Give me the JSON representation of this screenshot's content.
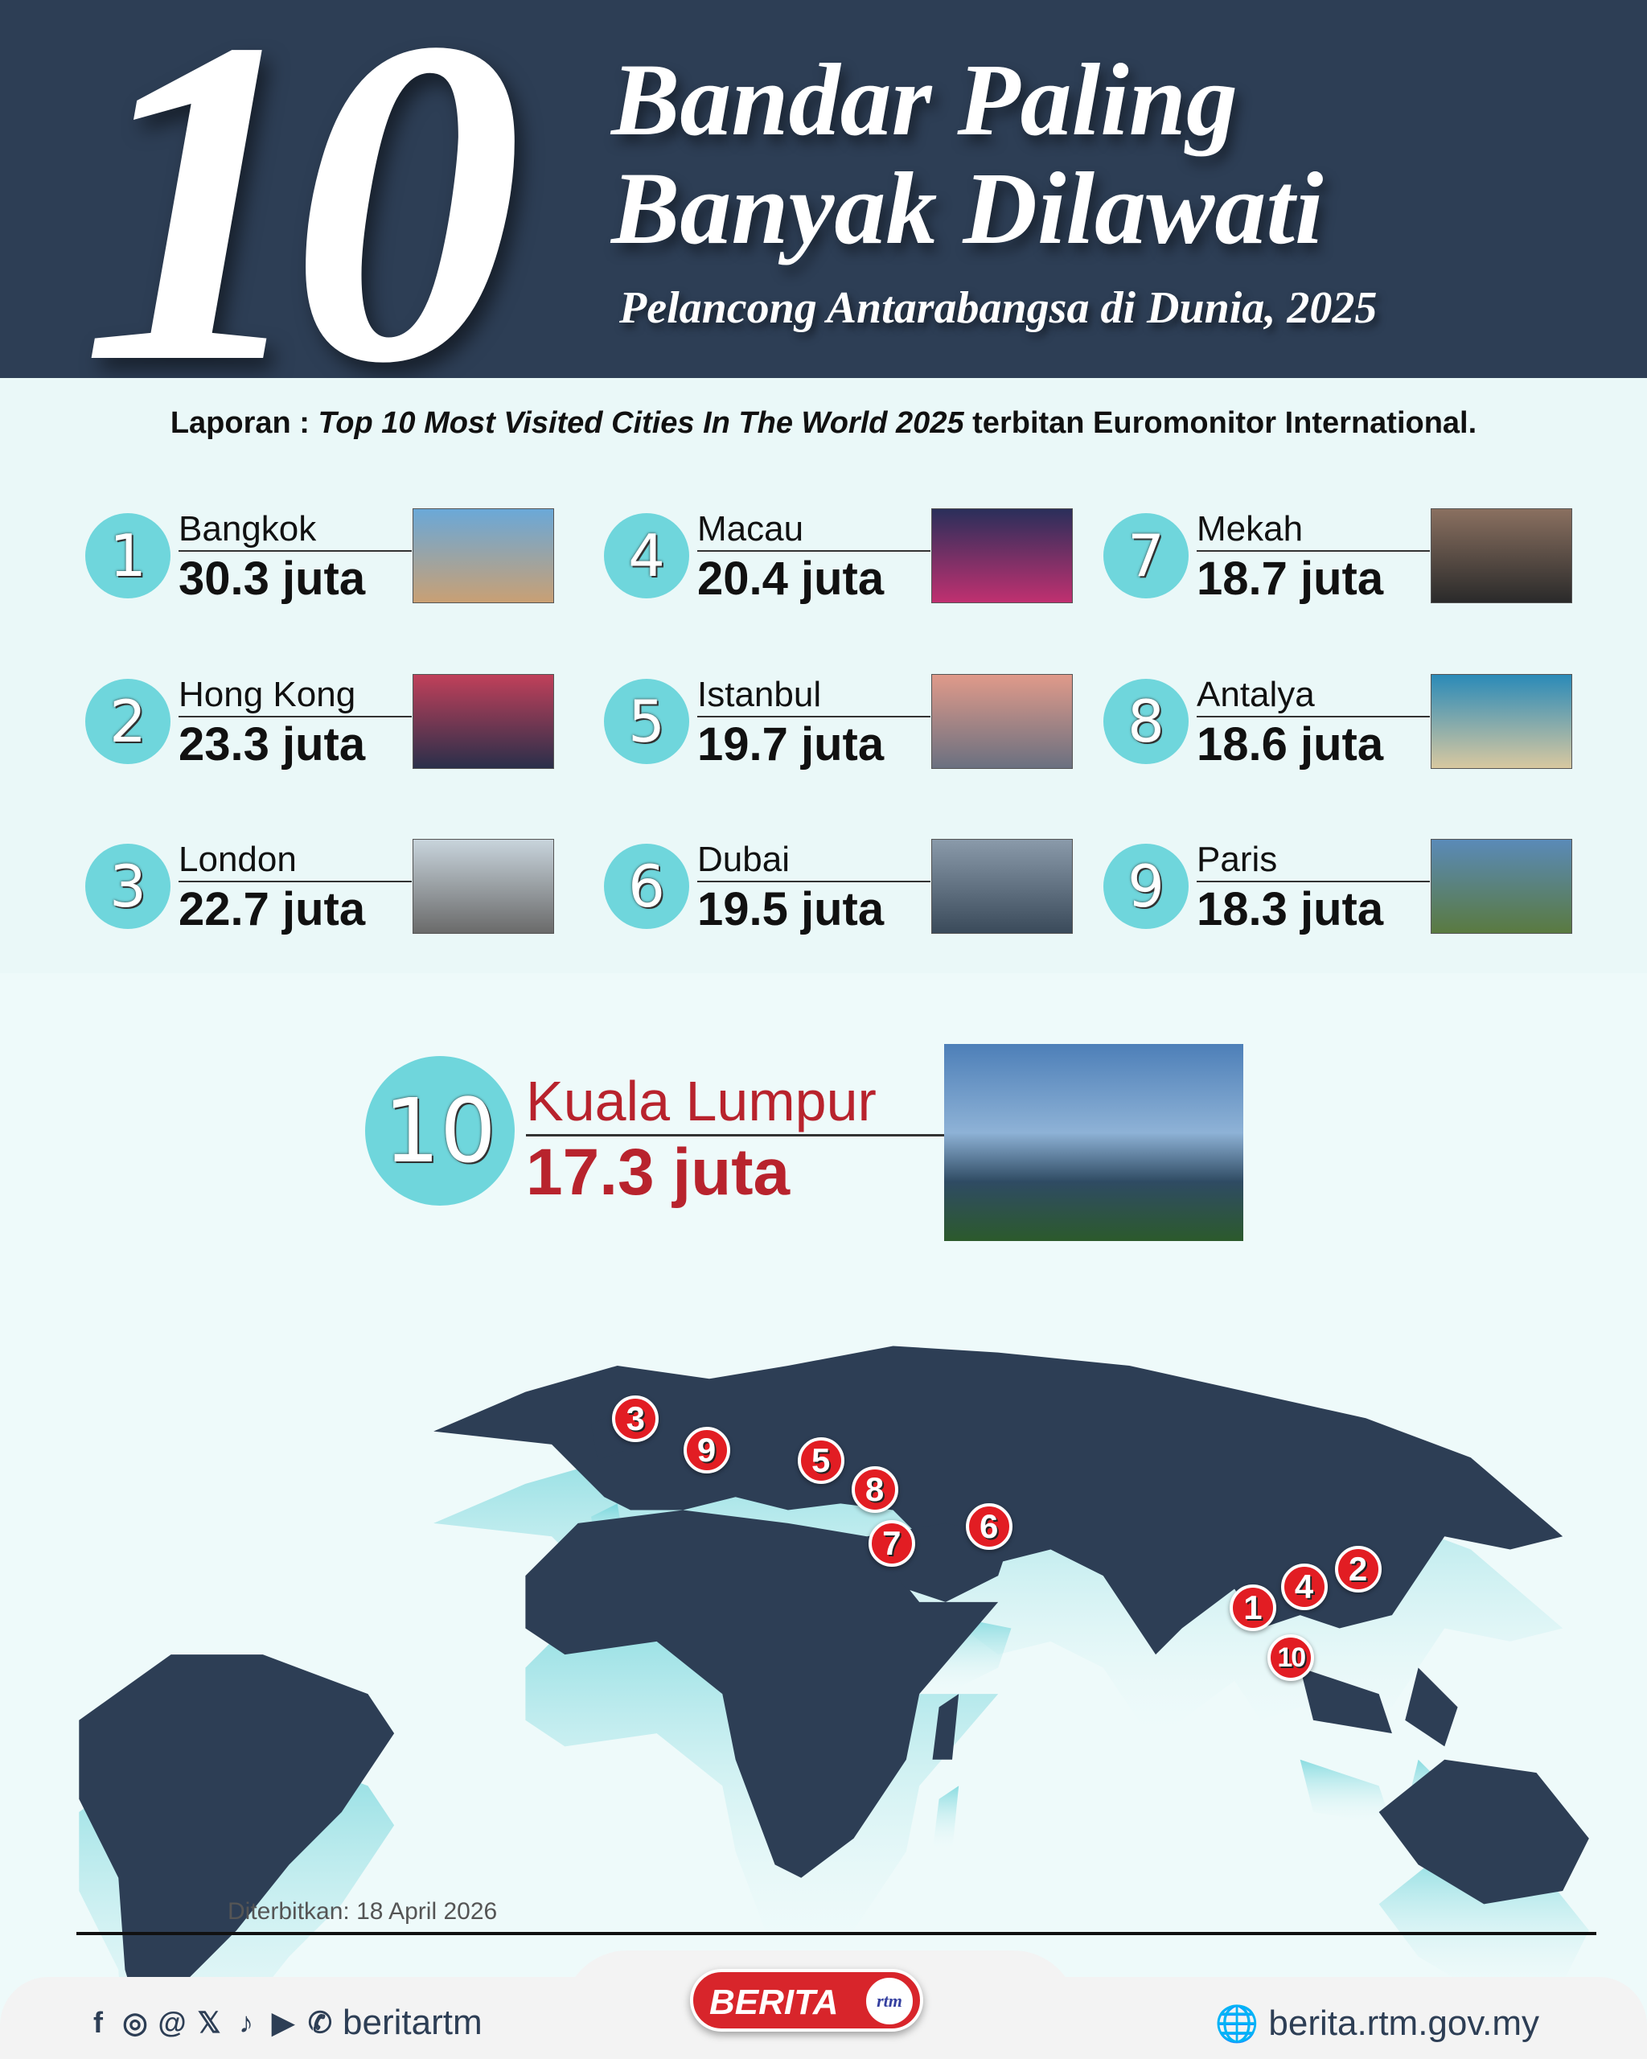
{
  "header": {
    "number": "10",
    "title_line1": "Bandar Paling",
    "title_line2": "Banyak Dilawati",
    "subtitle": "Pelancong Antarabangsa di Dunia, 2025"
  },
  "report": {
    "prefix": "Laporan : ",
    "italic": "Top 10 Most Visited Cities In The World 2025",
    "suffix": " terbitan Euromonitor International."
  },
  "cities": [
    {
      "rank": "1",
      "name": "Bangkok",
      "visitors": "30.3 juta"
    },
    {
      "rank": "2",
      "name": "Hong Kong",
      "visitors": "23.3 juta"
    },
    {
      "rank": "3",
      "name": "London",
      "visitors": "22.7 juta"
    },
    {
      "rank": "4",
      "name": "Macau",
      "visitors": "20.4 juta"
    },
    {
      "rank": "5",
      "name": "Istanbul",
      "visitors": "19.7 juta"
    },
    {
      "rank": "6",
      "name": "Dubai",
      "visitors": "19.5 juta"
    },
    {
      "rank": "7",
      "name": "Mekah",
      "visitors": "18.7 juta"
    },
    {
      "rank": "8",
      "name": "Antalya",
      "visitors": "18.6 juta"
    },
    {
      "rank": "9",
      "name": "Paris",
      "visitors": "18.3 juta"
    }
  ],
  "featured": {
    "rank": "10",
    "name": "Kuala Lumpur",
    "visitors": "17.3 juta",
    "color": "#b8232d"
  },
  "map_markers": [
    "3",
    "9",
    "5",
    "8",
    "7",
    "6",
    "1",
    "4",
    "2",
    "10"
  ],
  "colors": {
    "navy": "#2d3e55",
    "teal": "#6fd6dc",
    "marker": "#e21d23"
  },
  "published": "Diterbitkan: 18 April 2026",
  "footer": {
    "social_icons": [
      "facebook-icon",
      "instagram-icon",
      "threads-icon",
      "x-icon",
      "tiktok-icon",
      "youtube-icon",
      "whatsapp-icon"
    ],
    "handle": "beritartm",
    "logo_text": "BERITA",
    "logo_sub": "rtm",
    "website": "berita.rtm.gov.my"
  }
}
